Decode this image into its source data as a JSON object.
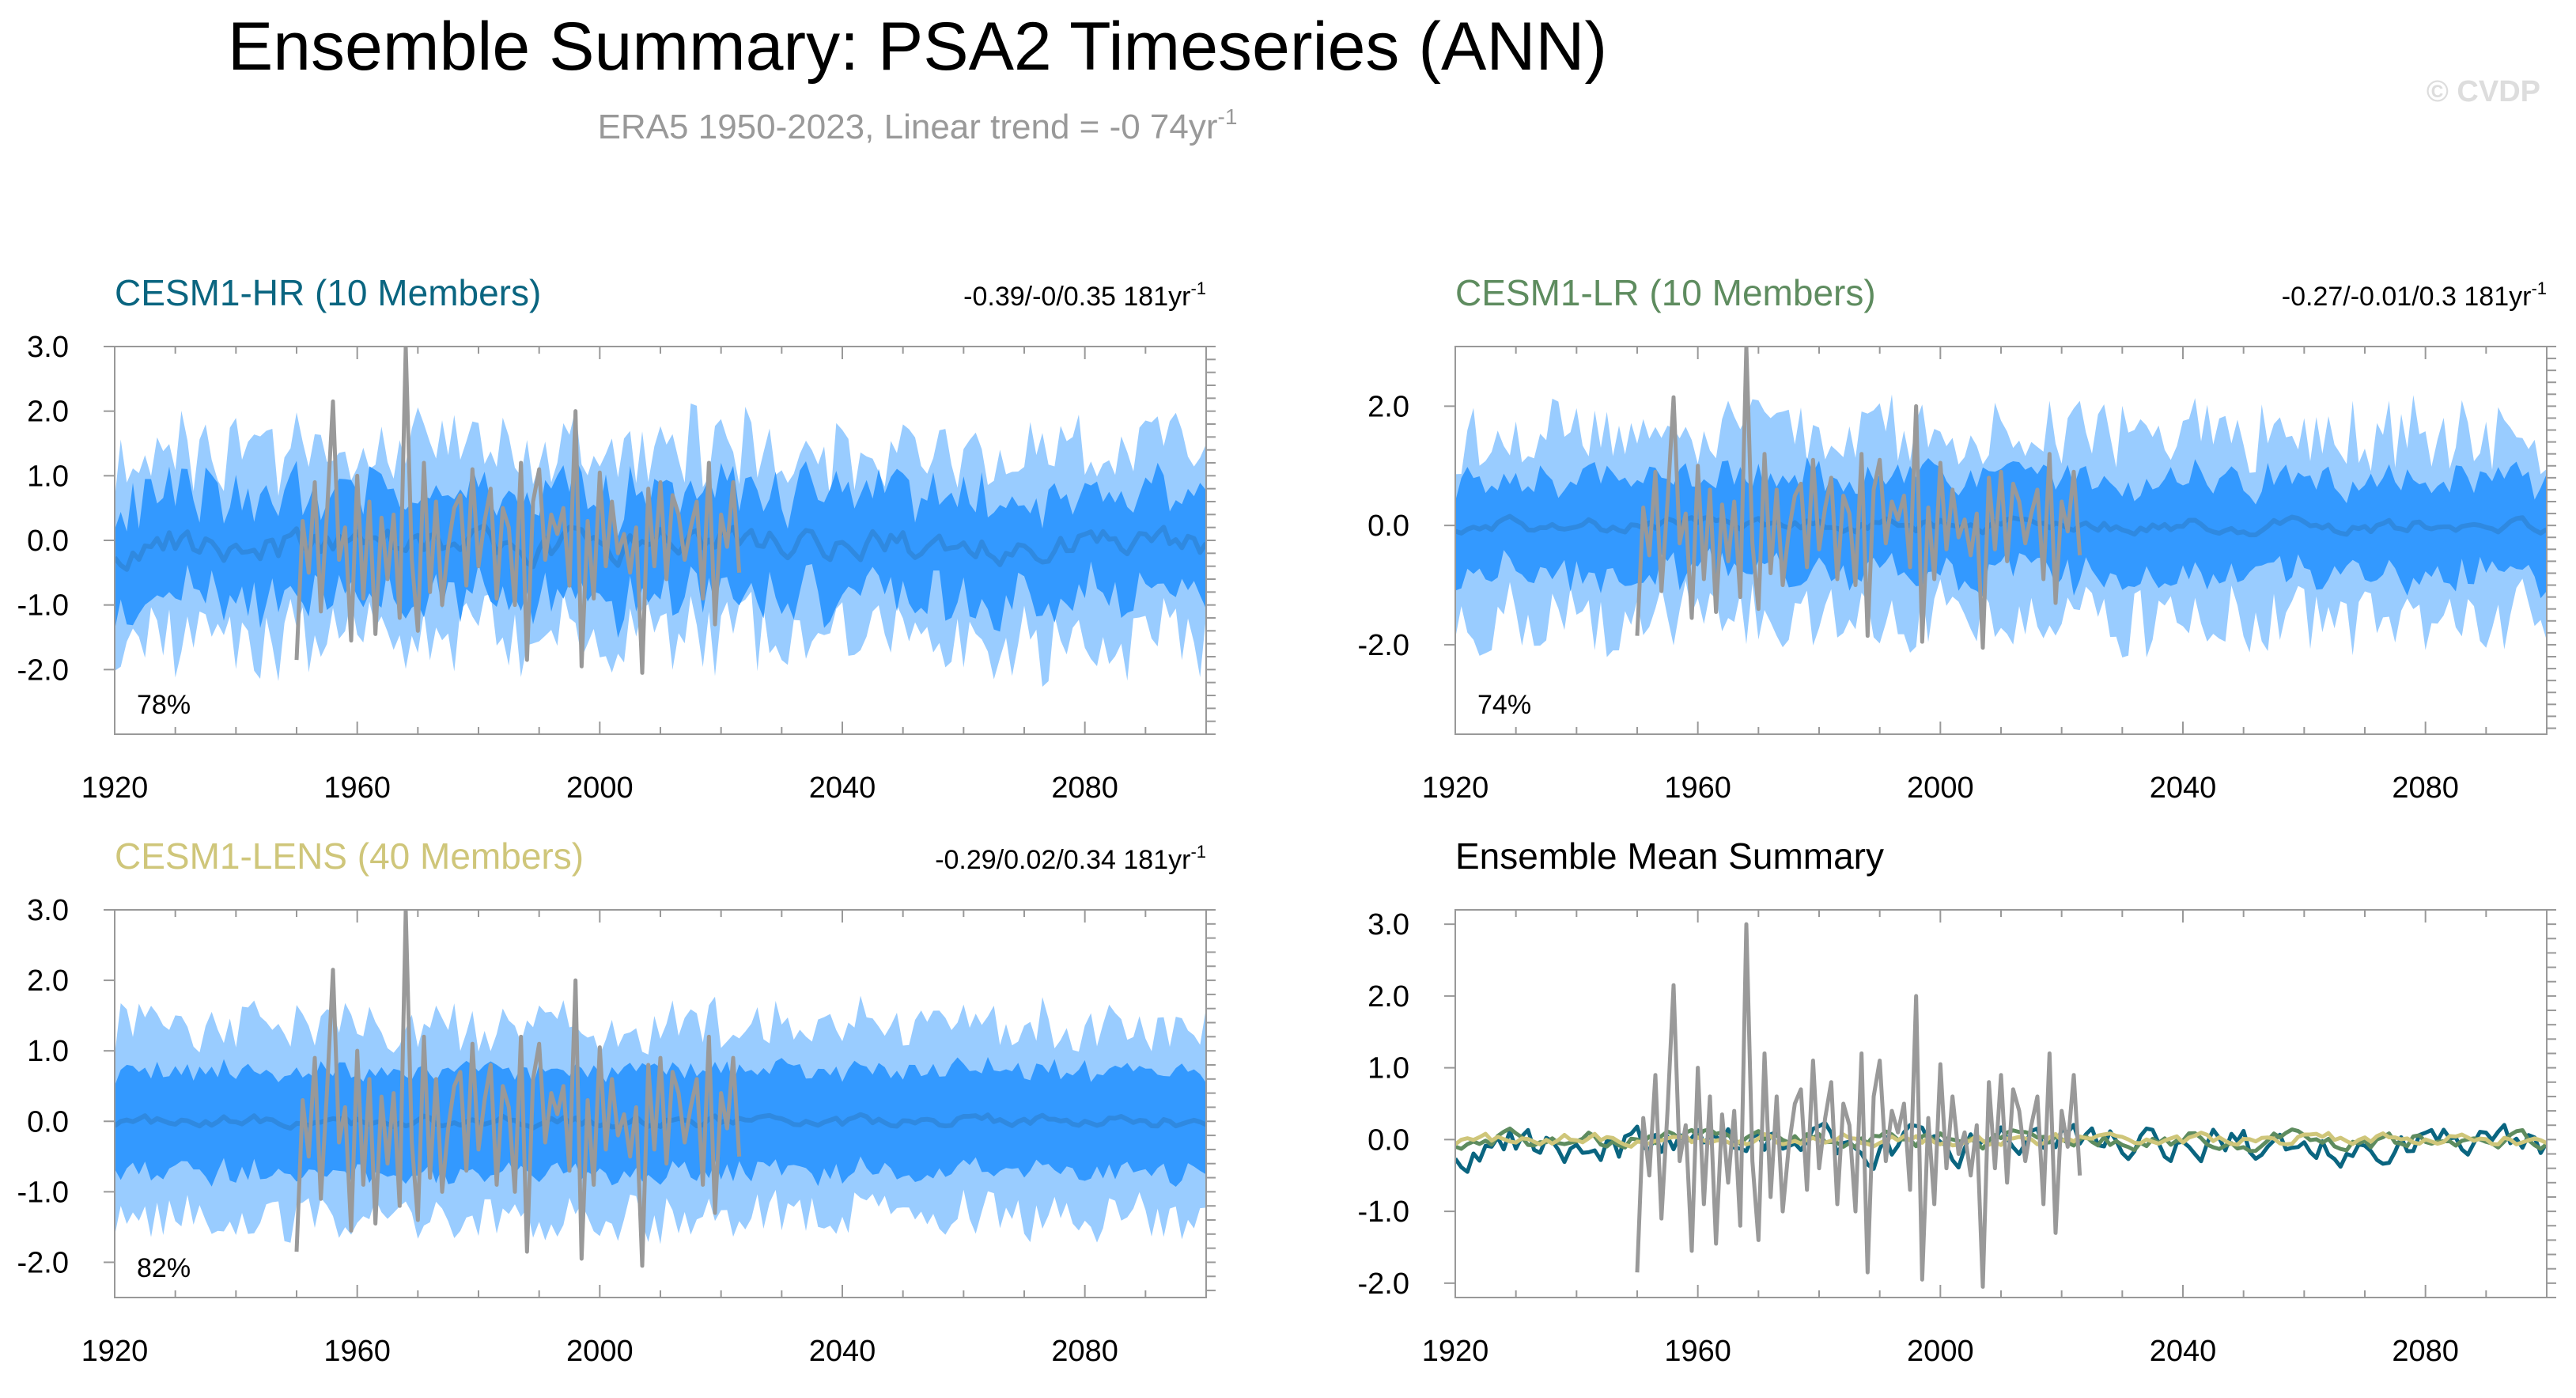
{
  "header": {
    "title": "Ensemble Summary: PSA2 Timeseries (ANN)",
    "subtitle_text": "ERA5 1950-2023, Linear trend = -0 74yr",
    "subtitle_sup": "-1",
    "watermark": "© CVDP"
  },
  "colors": {
    "inner_band": "#3399ff",
    "outer_band": "#99ccff",
    "ensemble_mean": "#2f89e0",
    "obs": "#999999",
    "cesm1_hr": "#0a6580",
    "cesm1_lr": "#5e8c5f",
    "cesm1_lens": "#cfc67a",
    "subtitle": "#999999"
  },
  "panels": [
    {
      "title": "CESM1-HR (10 Members)",
      "title_color": "#0a6580",
      "trend_text": "-0.39/-0/0.35 181yr",
      "trend_sup": "-1",
      "percent": "78%"
    },
    {
      "title": "CESM1-LR (10 Members)",
      "title_color": "#5e8c5f",
      "trend_text": "-0.27/-0.01/0.3 181yr",
      "trend_sup": "-1",
      "percent": "74%"
    },
    {
      "title": "CESM1-LENS (40 Members)",
      "title_color": "#cfc67a",
      "trend_text": "-0.29/0.02/0.34 181yr",
      "trend_sup": "-1",
      "percent": "82%"
    },
    {
      "title": "Ensemble Mean Summary",
      "title_color": "#000000",
      "trend_text": "",
      "trend_sup": "",
      "percent": ""
    }
  ],
  "chart_data": [
    {
      "type": "area",
      "panel": "CESM1-HR (10 Members)",
      "title": "CESM1-HR (10 Members)",
      "x_start": 1920,
      "x_end": 2100,
      "xlim": [
        1920,
        2100
      ],
      "ylim": [
        -3.0,
        3.0
      ],
      "yticks": [
        3.0,
        2.0,
        1.0,
        0.0,
        -1.0,
        -2.0
      ],
      "xticks": [
        1920,
        1960,
        2000,
        2040,
        2080
      ],
      "series": [
        {
          "role": "ensemble-mean",
          "seed": 11,
          "noise": 0.22,
          "offset": -0.05
        },
        {
          "role": "inner-band",
          "half_width": 0.78,
          "jitter": 0.35
        },
        {
          "role": "outer-band",
          "half_width": 1.45,
          "jitter": 0.55
        }
      ]
    },
    {
      "type": "area",
      "panel": "CESM1-LR (10 Members)",
      "title": "CESM1-LR (10 Members)",
      "x_start": 1920,
      "x_end": 2100,
      "xlim": [
        1920,
        2100
      ],
      "ylim": [
        -3.5,
        3.0
      ],
      "yticks": [
        2.0,
        0.0,
        -2.0
      ],
      "xticks": [
        1920,
        1960,
        2000,
        2040,
        2080
      ],
      "series": [
        {
          "role": "ensemble-mean",
          "seed": 23,
          "noise": 0.1,
          "offset": 0.0
        },
        {
          "role": "inner-band",
          "half_width": 0.8,
          "jitter": 0.3
        },
        {
          "role": "outer-band",
          "half_width": 1.55,
          "jitter": 0.6
        }
      ]
    },
    {
      "type": "area",
      "panel": "CESM1-LENS (40 Members)",
      "title": "CESM1-LENS (40 Members)",
      "x_start": 1920,
      "x_end": 2100,
      "xlim": [
        1920,
        2100
      ],
      "ylim": [
        -2.5,
        3.0
      ],
      "yticks": [
        3.0,
        2.0,
        1.0,
        0.0,
        -1.0,
        -2.0
      ],
      "xticks": [
        1920,
        1960,
        2000,
        2040,
        2080
      ],
      "series": [
        {
          "role": "ensemble-mean",
          "seed": 37,
          "noise": 0.07,
          "offset": 0.0
        },
        {
          "role": "inner-band",
          "half_width": 0.72,
          "jitter": 0.15
        },
        {
          "role": "outer-band",
          "half_width": 1.35,
          "jitter": 0.35
        }
      ]
    },
    {
      "type": "line",
      "panel": "Ensemble Mean Summary",
      "title": "Ensemble Mean Summary",
      "x_start": 1920,
      "x_end": 2100,
      "xlim": [
        1920,
        2100
      ],
      "ylim": [
        -2.2,
        3.2
      ],
      "yticks": [
        3.0,
        2.0,
        1.0,
        0.0,
        -1.0,
        -2.0
      ],
      "xticks": [
        1920,
        1960,
        2000,
        2040,
        2080
      ],
      "series": [
        {
          "name": "CESM1-HR",
          "seed": 11,
          "noise": 0.22,
          "offset": -0.05,
          "color": "#0a6580"
        },
        {
          "name": "CESM1-LR",
          "seed": 23,
          "noise": 0.1,
          "offset": 0.0,
          "color": "#5e8c5f"
        },
        {
          "name": "CESM1-LENS",
          "seed": 37,
          "noise": 0.07,
          "offset": 0.0,
          "color": "#cfc67a"
        }
      ]
    }
  ],
  "observations": {
    "name": "ERA5",
    "x_start": 1950,
    "x_end": 2023,
    "values": [
      -1.85,
      0.3,
      -0.5,
      0.9,
      -1.1,
      0.4,
      2.15,
      -0.3,
      0.2,
      -1.55,
      1.0,
      -0.9,
      0.6,
      -1.45,
      0.35,
      -0.6,
      0.4,
      -1.2,
      3.0,
      -0.3,
      -1.4,
      1.2,
      -0.8,
      0.6,
      -1.0,
      -0.1,
      0.5,
      0.7,
      -0.7,
      1.1,
      -0.4,
      0.3,
      0.8,
      -0.9,
      0.5,
      0.2,
      -1.0,
      1.2,
      -1.85,
      0.6,
      1.1,
      -0.3,
      0.4,
      0.1,
      0.5,
      -0.7,
      2.0,
      -1.95,
      0.3,
      -0.9,
      1.05,
      -0.4,
      0.6,
      -0.2,
      0.1,
      -0.5,
      0.2,
      -2.05,
      0.8,
      -0.4,
      0.9,
      -0.6,
      0.7,
      0.4,
      -0.3,
      0.2,
      0.6,
      -0.9,
      1.2,
      -1.3,
      0.4,
      -0.1,
      0.9,
      -0.5
    ]
  }
}
